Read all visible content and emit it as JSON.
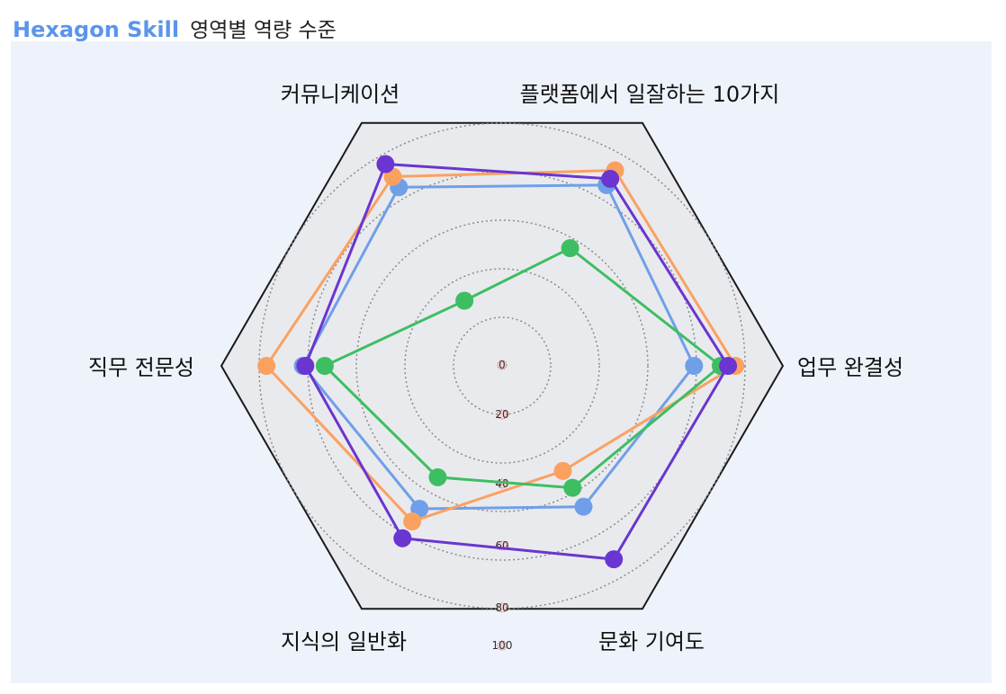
{
  "header": {
    "brand": "Hexagon Skill",
    "subtitle": "영역별 역량 수준"
  },
  "colors": {
    "brand": "#5b95ea",
    "hex_fill": "#e9eaee",
    "hex_stroke": "#1a1a1a",
    "grid": "#8a8a8a",
    "panel": "#eef3fb"
  },
  "chart_data": {
    "type": "radar",
    "axes": [
      "업무 완결성",
      "플랫폼에서 일잘하는 10가지",
      "커뮤니케이션",
      "직무 전문성",
      "지식의 일반화",
      "문화 기여도"
    ],
    "ticks": [
      "0",
      "20",
      "40",
      "60",
      "80",
      "100"
    ],
    "range": [
      0,
      100
    ],
    "grid": true,
    "series": [
      {
        "color": "#6f9fe8",
        "values": [
          79,
          86,
          85,
          82,
          68,
          67
        ]
      },
      {
        "color": "#fba160",
        "values": [
          96,
          93,
          90,
          97,
          74,
          50
        ]
      },
      {
        "color": "#3dbe62",
        "values": [
          90,
          56,
          31,
          73,
          53,
          58
        ]
      },
      {
        "color": "#6a35d0",
        "values": [
          93,
          89,
          96,
          81,
          82,
          92
        ]
      }
    ]
  }
}
